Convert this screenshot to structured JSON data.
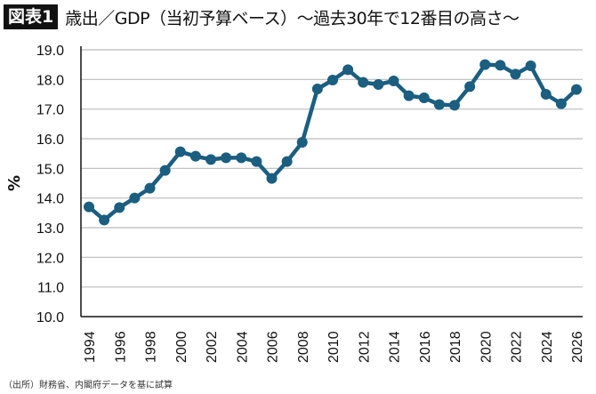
{
  "header": {
    "badge": "図表1",
    "title": "歳出／GDP（当初予算ベース）〜過去30年で12番目の高さ〜"
  },
  "source": "（出所）財務省、内閣府データを基に試算",
  "chart_data": {
    "type": "line",
    "title": "歳出／GDP（当初予算ベース）〜過去30年で12番目の高さ〜",
    "ylabel": "%",
    "xlabel": "",
    "ylim": [
      10.0,
      19.0
    ],
    "yticks": [
      "10.0",
      "11.0",
      "12.0",
      "13.0",
      "14.0",
      "15.0",
      "16.0",
      "17.0",
      "18.0",
      "19.0"
    ],
    "xticks": [
      "1994",
      "1996",
      "1998",
      "2000",
      "2002",
      "2004",
      "2006",
      "2008",
      "2010",
      "2012",
      "2014",
      "2016",
      "2018",
      "2020",
      "2022",
      "2024",
      "2026"
    ],
    "grid": "horizontal",
    "line_color": "#1b5e80",
    "x": [
      1994,
      1995,
      1996,
      1997,
      1998,
      1999,
      2000,
      2001,
      2002,
      2003,
      2004,
      2005,
      2006,
      2007,
      2008,
      2009,
      2010,
      2011,
      2012,
      2013,
      2014,
      2015,
      2016,
      2017,
      2018,
      2019,
      2020,
      2021,
      2022,
      2023,
      2024,
      2025,
      2026
    ],
    "values": [
      13.7,
      13.26,
      13.68,
      14.0,
      14.33,
      14.93,
      15.56,
      15.41,
      15.3,
      15.36,
      15.36,
      15.23,
      14.66,
      15.23,
      15.88,
      17.68,
      17.98,
      18.33,
      17.9,
      17.83,
      17.95,
      17.45,
      17.38,
      17.15,
      17.13,
      17.76,
      18.5,
      18.48,
      18.18,
      18.46,
      17.5,
      17.18,
      17.66
    ]
  }
}
